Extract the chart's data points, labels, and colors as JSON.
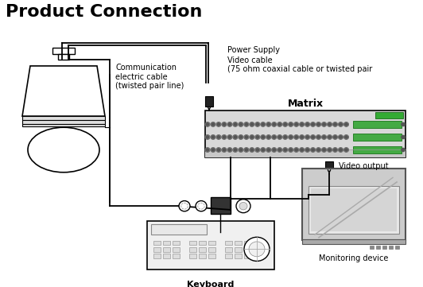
{
  "title": "Product Connection",
  "title_fontsize": 16,
  "title_fontweight": "bold",
  "bg_color": "#ffffff",
  "line_color": "#000000",
  "labels": {
    "comm_cable": "Communication\nelectric cable\n(twisted pair line)",
    "power_supply": "Power Supply",
    "video_cable": "Video cable\n(75 ohm coaxial cable or twisted pair",
    "matrix": "Matrix",
    "video_output": "Video output",
    "monitoring": "Monitoring device",
    "keyboard": "Keyboard"
  },
  "label_fontsize": 7,
  "matrix_label_fontsize": 9
}
